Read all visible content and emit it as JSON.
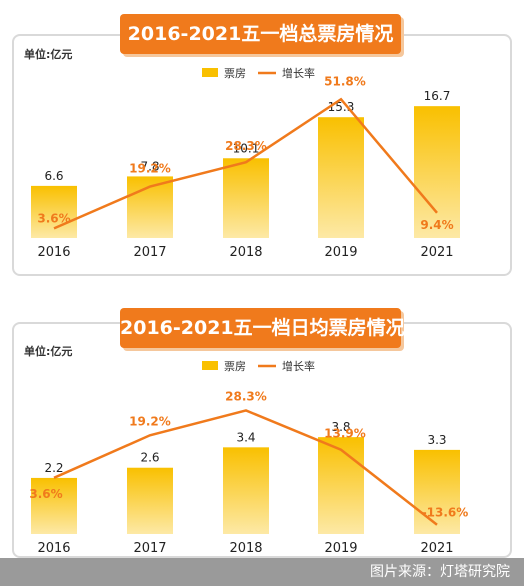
{
  "colors": {
    "bar_top": "#f9c000",
    "bar_bottom": "#fde9a6",
    "line": "#f07a1c",
    "banner": "#f07a1c"
  },
  "charts": [
    {
      "title": "2016-2021五一档总票房情况",
      "unit": "单位:亿元"
    },
    {
      "title": "2016-2021五一档日均票房情况",
      "unit": "单位:亿元"
    }
  ],
  "chart_data": [
    {
      "type": "bar",
      "title": "2016-2021五一档总票房情况",
      "ylabel": "单位:亿元",
      "categories": [
        "2016",
        "2017",
        "2018",
        "2019",
        "2021"
      ],
      "series": [
        {
          "name": "票房",
          "type": "bar",
          "values": [
            6.6,
            7.8,
            10.1,
            15.3,
            16.7
          ],
          "labels": [
            "6.6",
            "7.8",
            "10.1",
            "15.3",
            "16.7"
          ]
        },
        {
          "name": "增长率",
          "type": "line",
          "values": [
            3.6,
            19.2,
            28.3,
            51.8,
            9.4
          ],
          "labels": [
            "3.6%",
            "19.2%",
            "28.3%",
            "51.8%",
            "9.4%"
          ]
        }
      ],
      "bar_ylim": [
        0,
        19
      ],
      "line_ylim": [
        0,
        56
      ],
      "legend": "top-center",
      "grid": false
    },
    {
      "type": "bar",
      "title": "2016-2021五一档日均票房情况",
      "ylabel": "单位:亿元",
      "categories": [
        "2016",
        "2017",
        "2018",
        "2019",
        "2021"
      ],
      "series": [
        {
          "name": "票房",
          "type": "bar",
          "values": [
            2.2,
            2.6,
            3.4,
            3.8,
            3.3
          ],
          "labels": [
            "2.2",
            "2.6",
            "3.4",
            "3.8",
            "3.3"
          ]
        },
        {
          "name": "增长率",
          "type": "line",
          "values": [
            3.6,
            19.2,
            28.3,
            13.9,
            -13.6
          ],
          "labels": [
            "3.6%",
            "19.2%",
            "28.3%",
            "13.9%",
            "-13.6%"
          ]
        }
      ],
      "bar_ylim": [
        0,
        5.1
      ],
      "line_ylim": [
        -17,
        38
      ],
      "legend": "top-center",
      "grid": false
    }
  ],
  "footer": {
    "source": "图片来源：灯塔研究院"
  }
}
